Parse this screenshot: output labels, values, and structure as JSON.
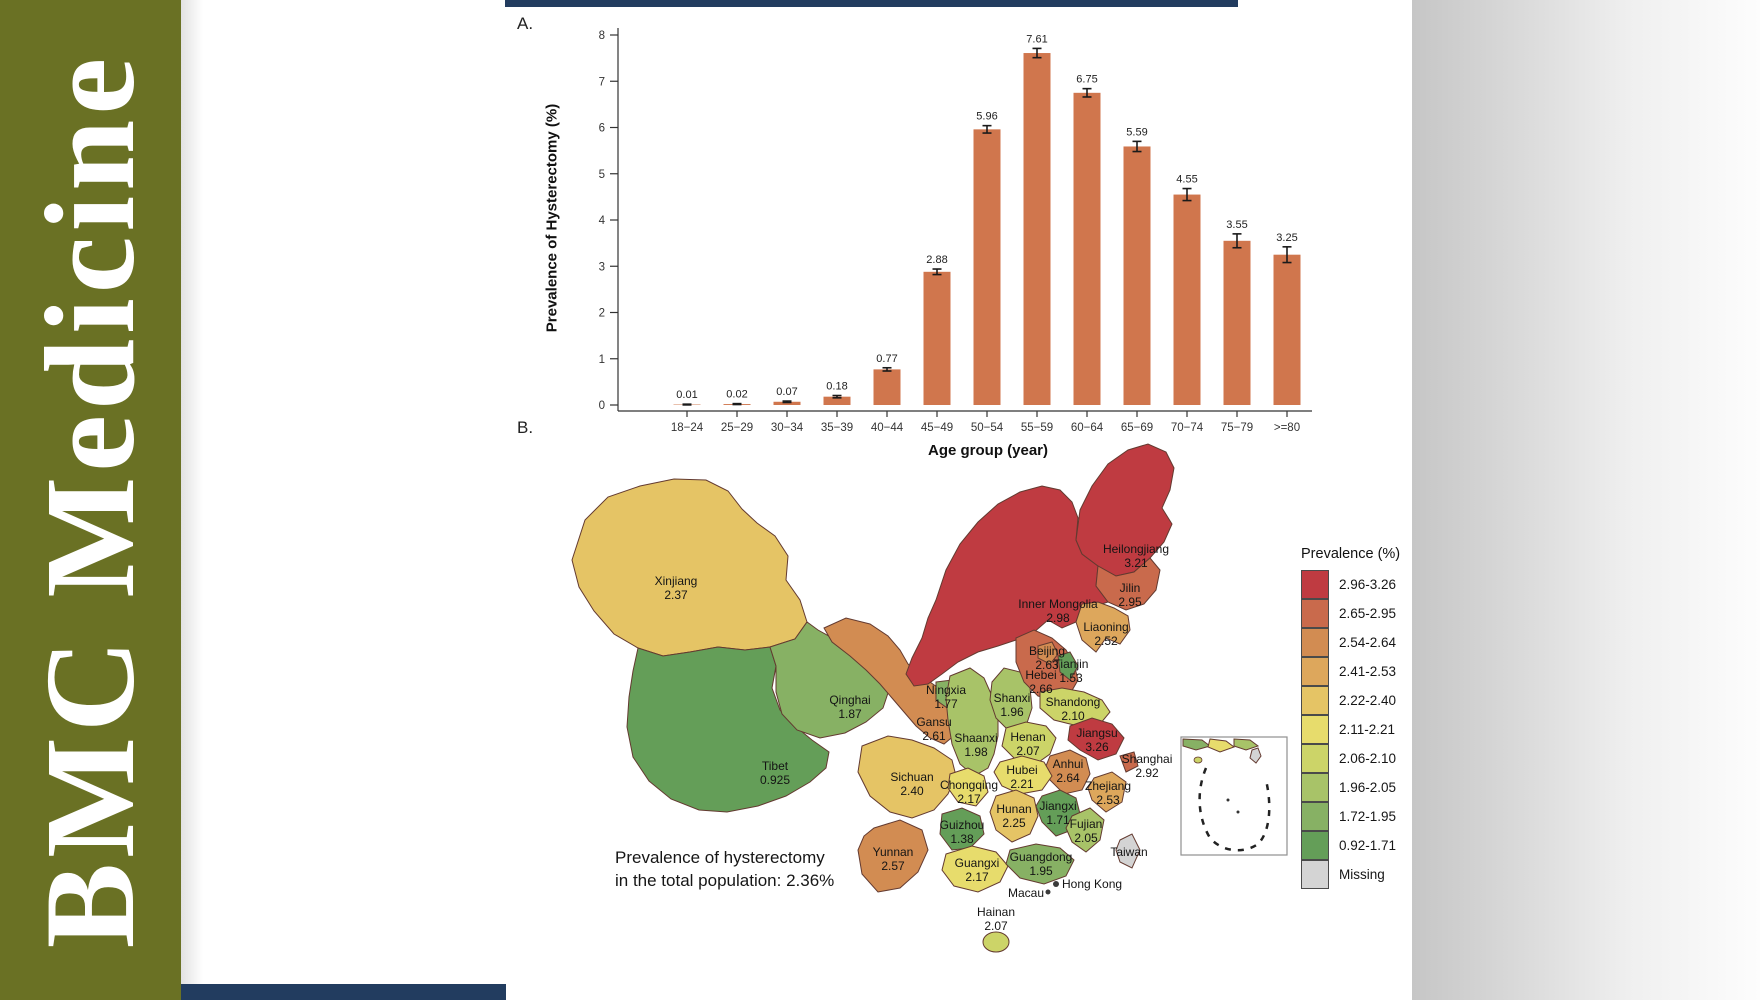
{
  "journal_brand": {
    "title": "BMC Medicine",
    "band_color": "#6a7124",
    "text_color": "#ffffff"
  },
  "page": {
    "top_bar_color": "#223c5f",
    "bottom_bar_color": "#223c5f"
  },
  "panel_a": {
    "label": "A."
  },
  "panel_b": {
    "label": "B.",
    "caption_line1": "Prevalence of hysterectomy",
    "caption_line2": "in the total population: 2.36%"
  },
  "chart_data": [
    {
      "type": "bar",
      "panel": "A",
      "categories": [
        "18−24",
        "25−29",
        "30−34",
        "35−39",
        "40−44",
        "45−49",
        "50−54",
        "55−59",
        "60−64",
        "65−69",
        "70−74",
        "75−79",
        ">=80"
      ],
      "values": [
        0.01,
        0.02,
        0.07,
        0.18,
        0.77,
        2.88,
        5.96,
        7.61,
        6.75,
        5.59,
        4.55,
        3.55,
        3.25
      ],
      "errors": [
        0.008,
        0.01,
        0.015,
        0.025,
        0.035,
        0.06,
        0.08,
        0.1,
        0.09,
        0.11,
        0.13,
        0.15,
        0.17
      ],
      "xlabel": "Age group (year)",
      "ylabel": "Prevalence of Hysterectomy (%)",
      "ylim": [
        0,
        8
      ],
      "y_ticks": [
        0,
        1,
        2,
        3,
        4,
        5,
        6,
        7,
        8
      ],
      "bar_color": "#d0764d",
      "error_bar_color": "#1a1a1a",
      "grid": false,
      "legend": "none"
    },
    {
      "type": "heatmap",
      "subtype": "choropleth-map",
      "panel": "B",
      "map": "China provinces",
      "value_label": "Prevalence (%)",
      "annotation": "Prevalence of hysterectomy in the total population: 2.36%",
      "bins": [
        {
          "range": "2.96-3.26",
          "color": "#bf3b41"
        },
        {
          "range": "2.65-2.95",
          "color": "#c96a4c"
        },
        {
          "range": "2.54-2.64",
          "color": "#d28c52"
        },
        {
          "range": "2.41-2.53",
          "color": "#dda75c"
        },
        {
          "range": "2.22-2.40",
          "color": "#e5c465"
        },
        {
          "range": "2.11-2.21",
          "color": "#e7dc6c"
        },
        {
          "range": "2.06-2.10",
          "color": "#ccd468"
        },
        {
          "range": "1.96-2.05",
          "color": "#a8c368"
        },
        {
          "range": "1.72-1.95",
          "color": "#87b164"
        },
        {
          "range": "0.92-1.71",
          "color": "#649e58"
        },
        {
          "range": "Missing",
          "color": "#d4d4d4"
        }
      ],
      "regions": [
        {
          "name": "Heilongjiang",
          "value": "3.21",
          "bin": 0
        },
        {
          "name": "Jilin",
          "value": "2.95",
          "bin": 1
        },
        {
          "name": "Liaoning",
          "value": "2.52",
          "bin": 3
        },
        {
          "name": "Inner Mongolia",
          "value": "2.98",
          "bin": 0
        },
        {
          "name": "Beijing",
          "value": "2.63",
          "bin": 2
        },
        {
          "name": "Tianjin",
          "value": "1.53",
          "bin": 9
        },
        {
          "name": "Hebei",
          "value": "2.66",
          "bin": 1
        },
        {
          "name": "Shanxi",
          "value": "1.96",
          "bin": 7
        },
        {
          "name": "Shandong",
          "value": "2.10",
          "bin": 6
        },
        {
          "name": "Xinjiang",
          "value": "2.37",
          "bin": 4
        },
        {
          "name": "Ningxia",
          "value": "1.77",
          "bin": 8
        },
        {
          "name": "Qinghai",
          "value": "1.87",
          "bin": 8
        },
        {
          "name": "Gansu",
          "value": "2.61",
          "bin": 2
        },
        {
          "name": "Shaanxi",
          "value": "1.98",
          "bin": 7
        },
        {
          "name": "Henan",
          "value": "2.07",
          "bin": 6
        },
        {
          "name": "Jiangsu",
          "value": "3.26",
          "bin": 0
        },
        {
          "name": "Shanghai",
          "value": "2.92",
          "bin": 1
        },
        {
          "name": "Anhui",
          "value": "2.64",
          "bin": 2
        },
        {
          "name": "Zhejiang",
          "value": "2.53",
          "bin": 3
        },
        {
          "name": "Tibet",
          "value": "0.925",
          "bin": 9
        },
        {
          "name": "Sichuan",
          "value": "2.40",
          "bin": 4
        },
        {
          "name": "Chongqing",
          "value": "2.17",
          "bin": 5
        },
        {
          "name": "Hubei",
          "value": "2.21",
          "bin": 5
        },
        {
          "name": "Hunan",
          "value": "2.25",
          "bin": 4
        },
        {
          "name": "Jiangxi",
          "value": "1.71",
          "bin": 9
        },
        {
          "name": "Guizhou",
          "value": "1.38",
          "bin": 9
        },
        {
          "name": "Yunnan",
          "value": "2.57",
          "bin": 2
        },
        {
          "name": "Guangxi",
          "value": "2.17",
          "bin": 5
        },
        {
          "name": "Guangdong",
          "value": "1.95",
          "bin": 8
        },
        {
          "name": "Fujian",
          "value": "2.05",
          "bin": 7
        },
        {
          "name": "Hainan",
          "value": "2.07",
          "bin": 6
        },
        {
          "name": "Taiwan",
          "value": null,
          "bin": 10
        },
        {
          "name": "Hong Kong",
          "value": null,
          "bin": null
        },
        {
          "name": "Macau",
          "value": null,
          "bin": null
        }
      ]
    }
  ]
}
